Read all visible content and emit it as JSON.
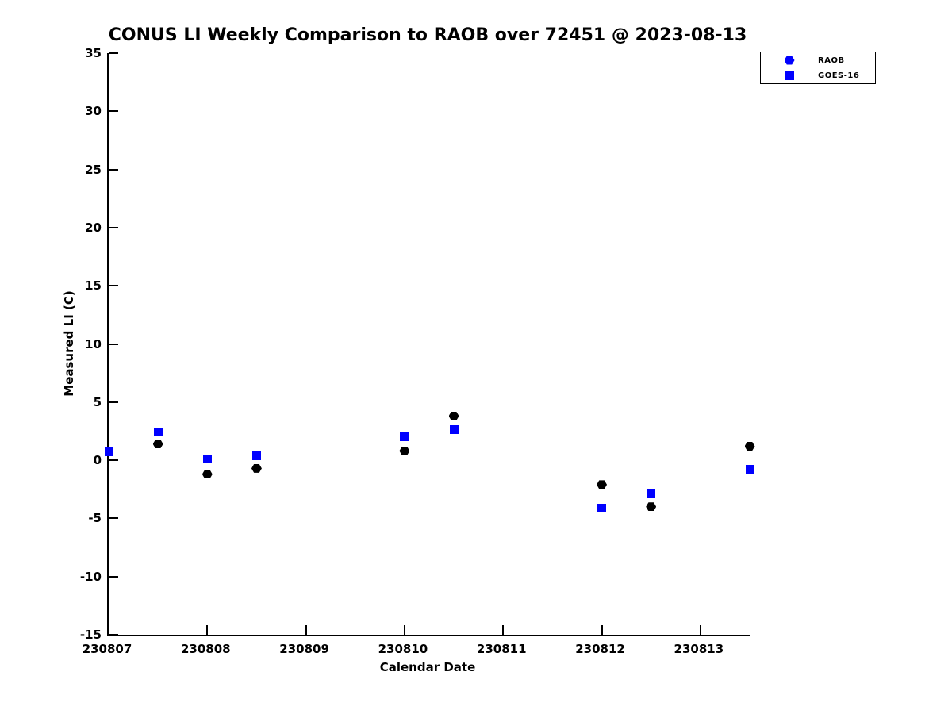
{
  "chart_data": {
    "type": "scatter",
    "title": "CONUS LI Weekly Comparison to RAOB over 72451 @ 2023-08-13",
    "xlabel": "Calendar Date",
    "ylabel": "Measured LI (C)",
    "xlim": [
      230807,
      230813.5
    ],
    "ylim": [
      -15,
      35
    ],
    "xticks": [
      230807,
      230808,
      230809,
      230810,
      230811,
      230812,
      230813
    ],
    "yticks": [
      35,
      30,
      25,
      20,
      15,
      10,
      5,
      0,
      -5,
      -10,
      -15
    ],
    "grid": false,
    "legend_position": "top-right-outside",
    "series": [
      {
        "name": "RAOB",
        "marker": "hexagon",
        "plot_color": "#000000",
        "legend_color": "#0000ff",
        "points": [
          {
            "x": 230807.5,
            "y": 1.4
          },
          {
            "x": 230808.0,
            "y": -1.2
          },
          {
            "x": 230808.5,
            "y": -0.7
          },
          {
            "x": 230810.0,
            "y": 0.8
          },
          {
            "x": 230810.5,
            "y": 3.8
          },
          {
            "x": 230812.0,
            "y": -2.1
          },
          {
            "x": 230812.5,
            "y": -4.0
          },
          {
            "x": 230813.5,
            "y": 1.2
          }
        ]
      },
      {
        "name": "GOES-16",
        "marker": "square",
        "plot_color": "#0000ff",
        "legend_color": "#0000ff",
        "points": [
          {
            "x": 230807.0,
            "y": 0.7
          },
          {
            "x": 230807.5,
            "y": 2.4
          },
          {
            "x": 230808.0,
            "y": 0.1
          },
          {
            "x": 230808.5,
            "y": 0.4
          },
          {
            "x": 230810.0,
            "y": 2.0
          },
          {
            "x": 230810.5,
            "y": 2.6
          },
          {
            "x": 230812.0,
            "y": -4.1
          },
          {
            "x": 230812.5,
            "y": -2.9
          },
          {
            "x": 230813.5,
            "y": -0.8
          }
        ]
      }
    ]
  }
}
